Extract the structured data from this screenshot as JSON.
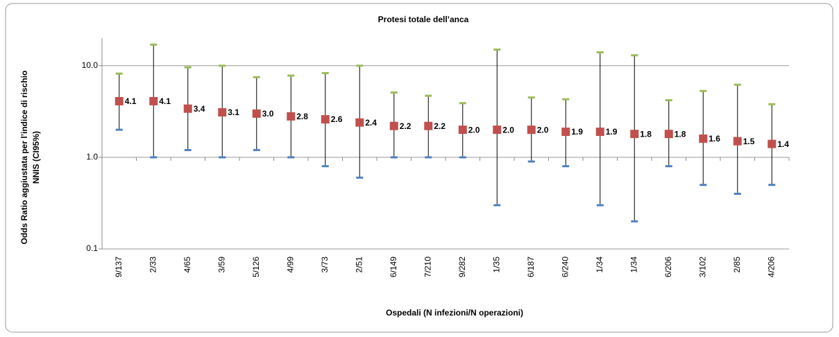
{
  "chart_data": {
    "type": "errorbar",
    "title": "Protesi totale dell’anca",
    "x_label": "Ospedali (N infezioni/N operazioni)",
    "y_label": [
      "Odds Ratio aggiustata per l’indice di rischio",
      "NNIS (CI95%)"
    ],
    "categories": [
      "9/137",
      "2/33",
      "4/65",
      "3/59",
      "5/126",
      "4/99",
      "3/73",
      "2/51",
      "6/149",
      "7/210",
      "9/282",
      "1/35",
      "6/187",
      "6/240",
      "1/34",
      "1/34",
      "6/206",
      "3/102",
      "2/85",
      "4/206"
    ],
    "values": [
      4.1,
      4.1,
      3.4,
      3.1,
      3.0,
      2.8,
      2.6,
      2.4,
      2.2,
      2.2,
      2.0,
      2.0,
      2.0,
      1.9,
      1.9,
      1.8,
      1.8,
      1.6,
      1.5,
      1.4
    ],
    "value_labels": [
      "4.1",
      "4.1",
      "3.4",
      "3.1",
      "3.0",
      "2.8",
      "2.6",
      "2.4",
      "2.2",
      "2.2",
      "2.0",
      "2.0",
      "2.0",
      "1.9",
      "1.9",
      "1.8",
      "1.8",
      "1.6",
      "1.5",
      "1.4"
    ],
    "upper": [
      8.2,
      17,
      9.6,
      10,
      7.5,
      7.8,
      8.3,
      10,
      5.1,
      4.7,
      3.9,
      15,
      4.5,
      4.3,
      14,
      13,
      4.2,
      5.3,
      6.2,
      3.8
    ],
    "lower": [
      2.0,
      1.0,
      1.2,
      1.0,
      1.2,
      1.0,
      0.8,
      0.6,
      1.0,
      1.0,
      1.0,
      0.3,
      0.9,
      0.8,
      0.3,
      0.2,
      0.8,
      0.5,
      0.4,
      0.5
    ],
    "color": "#c0504d",
    "upper_color": "#9bbb59",
    "lower_color": "#4f81bd",
    "ylim": [
      0.1,
      20
    ],
    "log_scale": true,
    "yticks": [
      0.1,
      {
        "value": 1,
        "label": "1.0"
      },
      {
        "value": 10,
        "label": "10.0"
      }
    ],
    "grid": true
  }
}
